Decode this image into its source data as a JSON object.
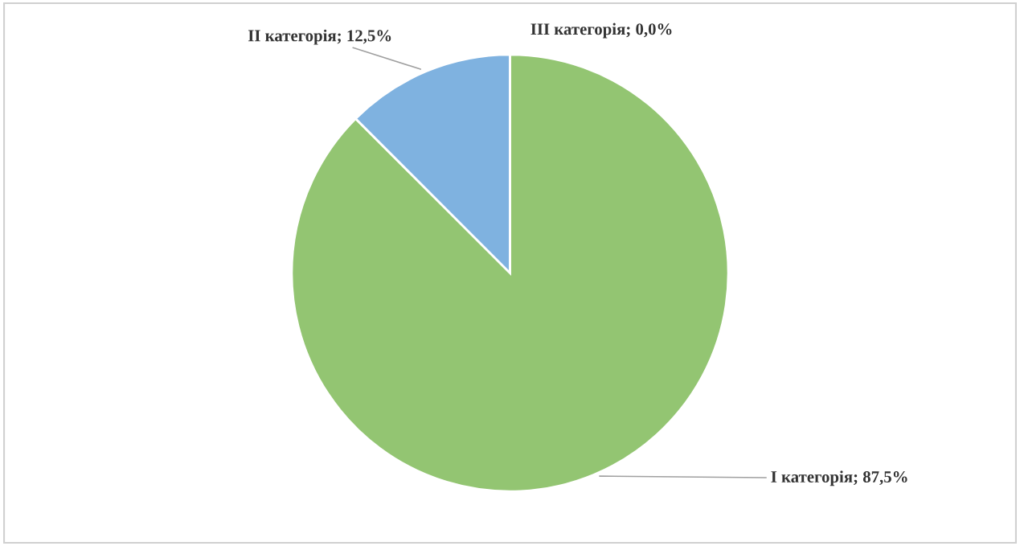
{
  "chart_data": {
    "type": "pie",
    "categories": [
      "I категорія",
      "II категорія",
      "III категорія"
    ],
    "values": [
      87.5,
      12.5,
      0.0
    ],
    "value_labels": [
      "; 87,5%",
      "; 12,5%",
      "; 0,0%"
    ],
    "colors": [
      "#93c572",
      "#7fb2e0",
      "#a5a5a5"
    ],
    "legend": false
  }
}
